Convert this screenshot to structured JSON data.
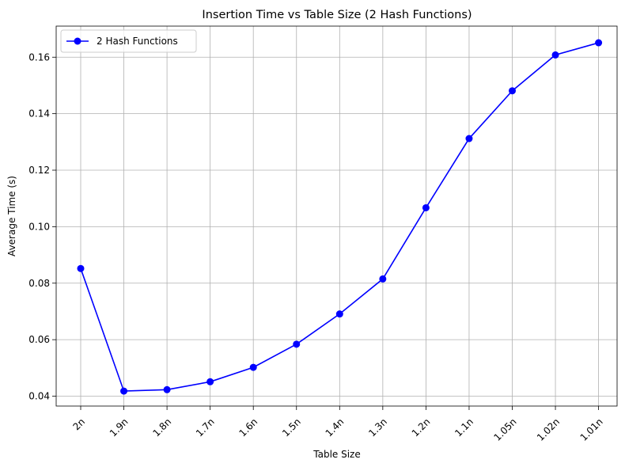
{
  "chart_data": {
    "type": "line",
    "title": "Insertion Time vs Table Size (2 Hash Functions)",
    "xlabel": "Table Size",
    "ylabel": "Average Time (s)",
    "categories": [
      "2n",
      "1.9n",
      "1.8n",
      "1.7n",
      "1.6n",
      "1.5n",
      "1.4n",
      "1.3n",
      "1.2n",
      "1.1n",
      "1.05n",
      "1.02n",
      "1.01n"
    ],
    "series": [
      {
        "name": "2 Hash Functions",
        "color": "#0000ff",
        "marker": "circle",
        "values": [
          0.0852,
          0.0418,
          0.0423,
          0.0451,
          0.0502,
          0.0584,
          0.0691,
          0.0815,
          0.1067,
          0.1312,
          0.1481,
          0.1608,
          0.1651
        ]
      }
    ],
    "ylim": [
      0.0365,
      0.171
    ],
    "yticks": [
      0.04,
      0.06,
      0.08,
      0.1,
      0.12,
      0.14,
      0.16
    ],
    "ytick_labels": [
      "0.04",
      "0.06",
      "0.08",
      "0.10",
      "0.12",
      "0.14",
      "0.16"
    ],
    "grid": true,
    "grid_color": "#b0b0b0",
    "legend_position": "top-left",
    "xtick_rotation": -45
  }
}
